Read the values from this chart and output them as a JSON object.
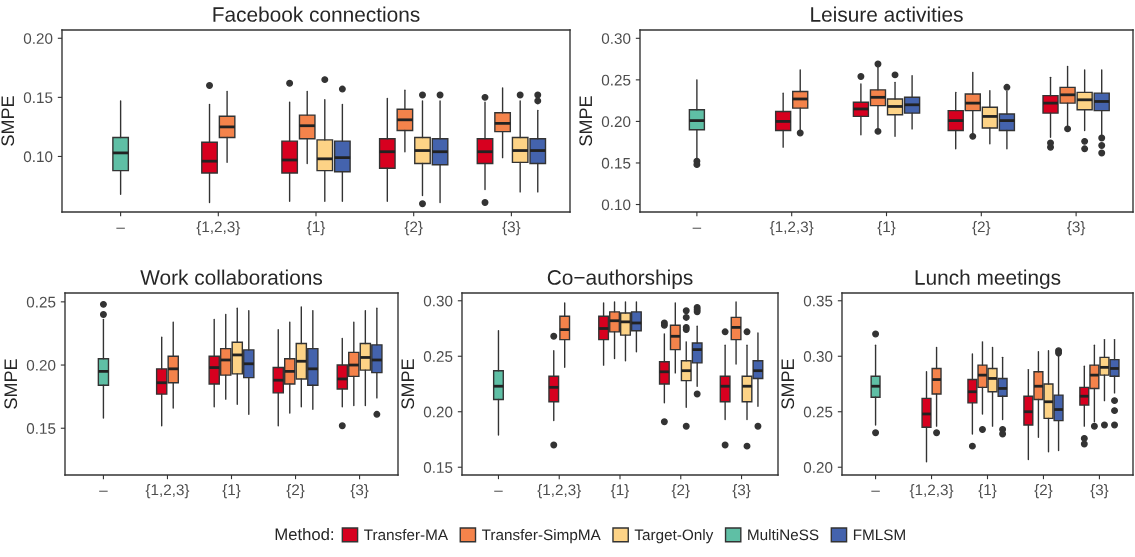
{
  "chart_data": [
    {
      "type": "box",
      "title": "Facebook connections",
      "ylabel": "SMPE",
      "categories": [
        "–",
        "{1,2,3}",
        "{1}",
        "{2}",
        "{3}"
      ],
      "ylim": [
        0.053,
        0.207
      ],
      "yticks": [
        {
          "value": 0.1,
          "label": "0.10"
        },
        0.15,
        {
          "value": 0.2,
          "label": "0.20"
        }
      ],
      "legend": "bottom",
      "legend_title": "Method:",
      "series": [
        {
          "name": "Transfer-MA",
          "color": "#d7001f",
          "boxes": [
            null,
            {
              "low": 0.061,
              "q1": 0.086,
              "median": 0.096,
              "q3": 0.112,
              "high": 0.144,
              "outliers": [
                0.16
              ]
            },
            {
              "low": 0.062,
              "q1": 0.086,
              "median": 0.097,
              "q3": 0.113,
              "high": 0.146,
              "outliers": [
                0.162
              ]
            },
            {
              "low": 0.062,
              "q1": 0.09,
              "median": 0.104,
              "q3": 0.115,
              "high": 0.149
            },
            {
              "low": 0.072,
              "q1": 0.094,
              "median": 0.104,
              "q3": 0.115,
              "high": 0.146,
              "outliers": [
                0.15,
                0.061
              ]
            }
          ]
        },
        {
          "name": "Transfer-SimpMA",
          "color": "#f4834b",
          "boxes": [
            null,
            {
              "low": 0.095,
              "q1": 0.116,
              "median": 0.125,
              "q3": 0.134,
              "high": 0.155
            },
            {
              "low": 0.094,
              "q1": 0.115,
              "median": 0.126,
              "q3": 0.135,
              "high": 0.155
            },
            {
              "low": 0.104,
              "q1": 0.122,
              "median": 0.131,
              "q3": 0.14,
              "high": 0.156
            },
            {
              "low": 0.099,
              "q1": 0.121,
              "median": 0.128,
              "q3": 0.137,
              "high": 0.158
            }
          ]
        },
        {
          "name": "Target-Only",
          "color": "#fdd386",
          "boxes": [
            null,
            null,
            {
              "low": 0.062,
              "q1": 0.088,
              "median": 0.098,
              "q3": 0.114,
              "high": 0.148,
              "outliers": [
                0.165
              ]
            },
            {
              "low": 0.067,
              "q1": 0.094,
              "median": 0.105,
              "q3": 0.116,
              "high": 0.147,
              "outliers": [
                0.152,
                0.06
              ]
            },
            {
              "low": 0.07,
              "q1": 0.095,
              "median": 0.105,
              "q3": 0.116,
              "high": 0.147,
              "outliers": [
                0.152
              ]
            }
          ]
        },
        {
          "name": "MultiNeSS",
          "color": "#5fbfa5",
          "boxes": [
            {
              "low": 0.068,
              "q1": 0.088,
              "median": 0.103,
              "q3": 0.116,
              "high": 0.147
            },
            null,
            null,
            null,
            null
          ]
        },
        {
          "name": "FMLSM",
          "color": "#4463ad",
          "boxes": [
            null,
            null,
            {
              "low": 0.062,
              "q1": 0.087,
              "median": 0.099,
              "q3": 0.113,
              "high": 0.144,
              "outliers": [
                0.157
              ]
            },
            {
              "low": 0.061,
              "q1": 0.093,
              "median": 0.104,
              "q3": 0.115,
              "high": 0.147,
              "outliers": [
                0.152
              ]
            },
            {
              "low": 0.07,
              "q1": 0.094,
              "median": 0.105,
              "q3": 0.115,
              "high": 0.139,
              "outliers": [
                0.152,
                0.147
              ]
            }
          ]
        }
      ]
    },
    {
      "type": "box",
      "title": "Leisure activities",
      "ylabel": "SMPE",
      "categories": [
        "–",
        "{1,2,3}",
        "{1}",
        "{2}",
        "{3}"
      ],
      "ylim": [
        0.091,
        0.31
      ],
      "yticks": [
        {
          "value": 0.1,
          "label": "0.10"
        },
        0.15,
        {
          "value": 0.2,
          "label": "0.20"
        },
        0.25,
        {
          "value": 0.3,
          "label": "0.30"
        }
      ],
      "series": [
        {
          "color": "#d7001f",
          "boxes": [
            null,
            {
              "low": 0.169,
              "q1": 0.189,
              "median": 0.2,
              "q3": 0.212,
              "high": 0.234
            },
            {
              "low": 0.184,
              "q1": 0.206,
              "median": 0.215,
              "q3": 0.223,
              "high": 0.245,
              "outliers": [
                0.254
              ]
            },
            {
              "low": 0.167,
              "q1": 0.189,
              "median": 0.201,
              "q3": 0.213,
              "high": 0.235
            },
            {
              "low": 0.181,
              "q1": 0.21,
              "median": 0.222,
              "q3": 0.231,
              "high": 0.253,
              "outliers": [
                0.174,
                0.169
              ]
            }
          ]
        },
        {
          "color": "#f4834b",
          "boxes": [
            null,
            {
              "low": 0.19,
              "q1": 0.216,
              "median": 0.227,
              "q3": 0.236,
              "high": 0.262,
              "outliers": [
                0.186
              ]
            },
            {
              "low": 0.192,
              "q1": 0.219,
              "median": 0.229,
              "q3": 0.238,
              "high": 0.265,
              "outliers": [
                0.269,
                0.188
              ]
            },
            {
              "low": 0.186,
              "q1": 0.213,
              "median": 0.222,
              "q3": 0.233,
              "high": 0.259,
              "outliers": [
                0.182
              ]
            },
            {
              "low": 0.193,
              "q1": 0.222,
              "median": 0.232,
              "q3": 0.241,
              "high": 0.266,
              "outliers": [
                0.191
              ]
            }
          ]
        },
        {
          "color": "#fdd386",
          "boxes": [
            null,
            null,
            {
              "low": 0.182,
              "q1": 0.208,
              "median": 0.218,
              "q3": 0.227,
              "high": 0.247,
              "outliers": [
                0.256
              ]
            },
            {
              "low": 0.173,
              "q1": 0.192,
              "median": 0.206,
              "q3": 0.217,
              "high": 0.237
            },
            {
              "low": 0.189,
              "q1": 0.214,
              "median": 0.226,
              "q3": 0.235,
              "high": 0.262,
              "outliers": [
                0.176,
                0.167
              ]
            }
          ]
        },
        {
          "color": "#5fbfa5",
          "boxes": [
            {
              "low": 0.155,
              "q1": 0.19,
              "median": 0.201,
              "q3": 0.214,
              "high": 0.25,
              "outliers": [
                0.152,
                0.148
              ]
            },
            null,
            null,
            null,
            null
          ]
        },
        {
          "color": "#4463ad",
          "boxes": [
            null,
            null,
            {
              "low": 0.191,
              "q1": 0.21,
              "median": 0.22,
              "q3": 0.229,
              "high": 0.255
            },
            {
              "low": 0.167,
              "q1": 0.189,
              "median": 0.201,
              "q3": 0.209,
              "high": 0.236,
              "outliers": [
                0.241
              ]
            },
            {
              "low": 0.184,
              "q1": 0.213,
              "median": 0.224,
              "q3": 0.234,
              "high": 0.262,
              "outliers": [
                0.18,
                0.171,
                0.162
              ]
            }
          ]
        }
      ]
    },
    {
      "type": "box",
      "title": "Work collaborations",
      "ylabel": "SMPE",
      "categories": [
        "–",
        "{1,2,3}",
        "{1}",
        "{2}",
        "{3}"
      ],
      "ylim": [
        0.113,
        0.257
      ],
      "yticks": [
        0.15,
        {
          "value": 0.2,
          "label": "0.20"
        },
        0.25
      ],
      "series": [
        {
          "color": "#d7001f",
          "boxes": [
            null,
            {
              "low": 0.152,
              "q1": 0.177,
              "median": 0.186,
              "q3": 0.197,
              "high": 0.222
            },
            {
              "low": 0.167,
              "q1": 0.185,
              "median": 0.198,
              "q3": 0.207,
              "high": 0.236
            },
            {
              "low": 0.152,
              "q1": 0.178,
              "median": 0.188,
              "q3": 0.198,
              "high": 0.228
            },
            {
              "low": 0.167,
              "q1": 0.181,
              "median": 0.189,
              "q3": 0.2,
              "high": 0.221,
              "outliers": [
                0.152
              ]
            }
          ]
        },
        {
          "color": "#f4834b",
          "boxes": [
            null,
            {
              "low": 0.166,
              "q1": 0.186,
              "median": 0.197,
              "q3": 0.207,
              "high": 0.234
            },
            {
              "low": 0.173,
              "q1": 0.192,
              "median": 0.204,
              "q3": 0.213,
              "high": 0.24
            },
            {
              "low": 0.162,
              "q1": 0.185,
              "median": 0.195,
              "q3": 0.205,
              "high": 0.234
            },
            {
              "low": 0.168,
              "q1": 0.191,
              "median": 0.2,
              "q3": 0.21,
              "high": 0.234
            }
          ]
        },
        {
          "color": "#fdd386",
          "boxes": [
            null,
            null,
            {
              "low": 0.169,
              "q1": 0.193,
              "median": 0.208,
              "q3": 0.218,
              "high": 0.245
            },
            {
              "low": 0.167,
              "q1": 0.189,
              "median": 0.203,
              "q3": 0.217,
              "high": 0.246
            },
            {
              "low": 0.168,
              "q1": 0.196,
              "median": 0.206,
              "q3": 0.217,
              "high": 0.243
            }
          ]
        },
        {
          "color": "#5fbfa5",
          "boxes": [
            {
              "low": 0.158,
              "q1": 0.184,
              "median": 0.195,
              "q3": 0.205,
              "high": 0.236,
              "outliers": [
                0.248,
                0.24
              ]
            },
            null,
            null,
            null,
            null
          ]
        },
        {
          "color": "#4463ad",
          "boxes": [
            null,
            null,
            {
              "low": 0.161,
              "q1": 0.19,
              "median": 0.201,
              "q3": 0.212,
              "high": 0.243
            },
            {
              "low": 0.165,
              "q1": 0.184,
              "median": 0.197,
              "q3": 0.213,
              "high": 0.243
            },
            {
              "low": 0.174,
              "q1": 0.194,
              "median": 0.204,
              "q3": 0.216,
              "high": 0.245,
              "outliers": [
                0.161
              ]
            }
          ]
        }
      ]
    },
    {
      "type": "box",
      "title": "Co−authorships",
      "ylabel": "SMPE",
      "categories": [
        "–",
        "{1,2,3}",
        "{1}",
        "{2}",
        "{3}"
      ],
      "ylim": [
        0.143,
        0.307
      ],
      "yticks": [
        0.15,
        {
          "value": 0.2,
          "label": "0.20"
        },
        0.25,
        {
          "value": 0.3,
          "label": "0.30"
        }
      ],
      "series": [
        {
          "color": "#d7001f",
          "boxes": [
            null,
            {
              "low": 0.192,
              "q1": 0.209,
              "median": 0.222,
              "q3": 0.232,
              "high": 0.255,
              "outliers": [
                0.268,
                0.17
              ]
            },
            {
              "low": 0.242,
              "q1": 0.265,
              "median": 0.275,
              "q3": 0.286,
              "high": 0.298
            },
            {
              "low": 0.208,
              "q1": 0.225,
              "median": 0.236,
              "q3": 0.245,
              "high": 0.27,
              "outliers": [
                0.28,
                0.278,
                0.191
              ]
            },
            {
              "low": 0.193,
              "q1": 0.209,
              "median": 0.223,
              "q3": 0.232,
              "high": 0.26,
              "outliers": [
                0.272,
                0.17
              ]
            }
          ]
        },
        {
          "color": "#f4834b",
          "boxes": [
            null,
            {
              "low": 0.24,
              "q1": 0.265,
              "median": 0.274,
              "q3": 0.286,
              "high": 0.298
            },
            {
              "low": 0.248,
              "q1": 0.272,
              "median": 0.282,
              "q3": 0.29,
              "high": 0.299
            },
            {
              "low": 0.235,
              "q1": 0.256,
              "median": 0.268,
              "q3": 0.278,
              "high": 0.298
            },
            {
              "low": 0.243,
              "q1": 0.265,
              "median": 0.276,
              "q3": 0.285,
              "high": 0.299
            }
          ]
        },
        {
          "color": "#fdd386",
          "boxes": [
            null,
            null,
            {
              "low": 0.246,
              "q1": 0.269,
              "median": 0.281,
              "q3": 0.289,
              "high": 0.299
            },
            {
              "low": 0.204,
              "q1": 0.228,
              "median": 0.237,
              "q3": 0.246,
              "high": 0.263,
              "outliers": [
                0.291,
                0.285,
                0.276,
                0.274,
                0.187
              ]
            },
            {
              "low": 0.193,
              "q1": 0.209,
              "median": 0.223,
              "q3": 0.232,
              "high": 0.26,
              "outliers": [
                0.272,
                0.169
              ]
            }
          ]
        },
        {
          "color": "#5fbfa5",
          "boxes": [
            {
              "low": 0.179,
              "q1": 0.211,
              "median": 0.223,
              "q3": 0.237,
              "high": 0.273
            },
            null,
            null,
            null,
            null
          ]
        },
        {
          "color": "#4463ad",
          "boxes": [
            null,
            null,
            {
              "low": 0.254,
              "q1": 0.273,
              "median": 0.28,
              "q3": 0.29,
              "high": 0.299
            },
            {
              "low": 0.223,
              "q1": 0.244,
              "median": 0.256,
              "q3": 0.262,
              "high": 0.277,
              "outliers": [
                0.294,
                0.292,
                0.29,
                0.216
              ]
            },
            {
              "low": 0.205,
              "q1": 0.23,
              "median": 0.237,
              "q3": 0.246,
              "high": 0.271,
              "outliers": [
                0.187
              ]
            }
          ]
        }
      ]
    },
    {
      "type": "box",
      "title": "Lunch meetings",
      "ylabel": "SMPE",
      "categories": [
        "–",
        "{1,2,3}",
        "{1}",
        "{2}",
        "{3}"
      ],
      "ylim": [
        0.193,
        0.357
      ],
      "yticks": [
        {
          "value": 0.2,
          "label": "0.20"
        },
        0.25,
        {
          "value": 0.3,
          "label": "0.30"
        },
        0.35
      ],
      "series": [
        {
          "color": "#d7001f",
          "boxes": [
            null,
            {
              "low": 0.205,
              "q1": 0.236,
              "median": 0.248,
              "q3": 0.262,
              "high": 0.286
            },
            {
              "low": 0.23,
              "q1": 0.258,
              "median": 0.268,
              "q3": 0.279,
              "high": 0.302,
              "outliers": [
                0.219
              ]
            },
            {
              "low": 0.207,
              "q1": 0.238,
              "median": 0.25,
              "q3": 0.264,
              "high": 0.288
            },
            {
              "low": 0.237,
              "q1": 0.256,
              "median": 0.264,
              "q3": 0.272,
              "high": 0.291,
              "outliers": [
                0.226,
                0.221
              ]
            }
          ]
        },
        {
          "color": "#f4834b",
          "boxes": [
            null,
            {
              "low": 0.237,
              "q1": 0.266,
              "median": 0.279,
              "q3": 0.289,
              "high": 0.308,
              "outliers": [
                0.231
              ]
            },
            {
              "low": 0.248,
              "q1": 0.272,
              "median": 0.283,
              "q3": 0.292,
              "high": 0.313,
              "outliers": [
                0.234
              ]
            },
            {
              "low": 0.227,
              "q1": 0.261,
              "median": 0.273,
              "q3": 0.286,
              "high": 0.304
            },
            {
              "low": 0.241,
              "q1": 0.271,
              "median": 0.283,
              "q3": 0.292,
              "high": 0.31,
              "outliers": [
                0.237
              ]
            }
          ]
        },
        {
          "color": "#fdd386",
          "boxes": [
            null,
            null,
            {
              "low": 0.237,
              "q1": 0.268,
              "median": 0.28,
              "q3": 0.289,
              "high": 0.308
            },
            {
              "low": 0.214,
              "q1": 0.244,
              "median": 0.259,
              "q3": 0.275,
              "high": 0.305
            },
            {
              "low": 0.26,
              "q1": 0.283,
              "median": 0.29,
              "q3": 0.299,
              "high": 0.315,
              "outliers": [
                0.238
              ]
            }
          ]
        },
        {
          "color": "#5fbfa5",
          "boxes": [
            {
              "low": 0.238,
              "q1": 0.263,
              "median": 0.273,
              "q3": 0.282,
              "high": 0.31,
              "outliers": [
                0.32,
                0.231
              ]
            },
            null,
            null,
            null,
            null
          ]
        },
        {
          "color": "#4463ad",
          "boxes": [
            null,
            null,
            {
              "low": 0.243,
              "q1": 0.264,
              "median": 0.271,
              "q3": 0.28,
              "high": 0.299,
              "outliers": [
                0.234,
                0.23
              ]
            },
            {
              "low": 0.215,
              "q1": 0.242,
              "median": 0.252,
              "q3": 0.265,
              "high": 0.3,
              "outliers": [
                0.305,
                0.303
              ]
            },
            {
              "low": 0.267,
              "q1": 0.282,
              "median": 0.289,
              "q3": 0.297,
              "high": 0.315,
              "outliers": [
                0.26,
                0.251,
                0.238
              ]
            }
          ]
        }
      ]
    }
  ]
}
